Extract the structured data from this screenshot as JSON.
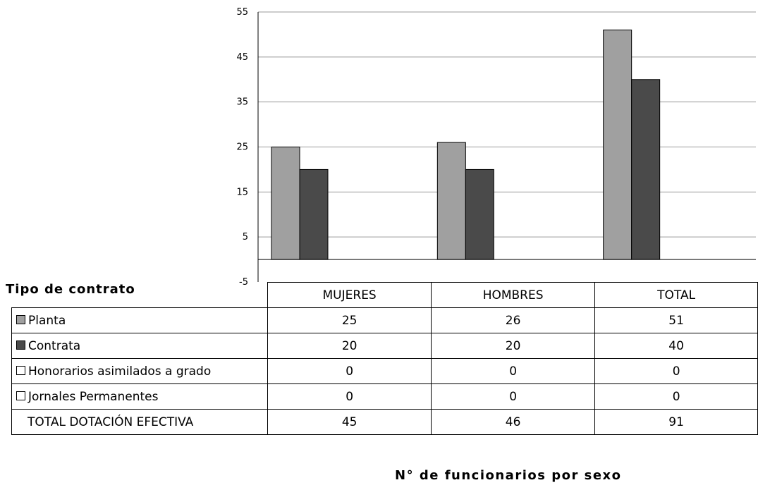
{
  "chart_data": {
    "type": "bar",
    "categories": [
      "MUJERES",
      "HOMBRES",
      "TOTAL"
    ],
    "series": [
      {
        "name": "Planta",
        "values": [
          25,
          26,
          51
        ],
        "color": "#a0a0a0"
      },
      {
        "name": "Contrata",
        "values": [
          20,
          20,
          40
        ],
        "color": "#4a4a4a"
      },
      {
        "name": "Honorarios asimilados a grado",
        "values": [
          0,
          0,
          0
        ],
        "color": "#ffffff"
      },
      {
        "name": "Jornales Permanentes",
        "values": [
          0,
          0,
          0
        ],
        "color": "#ffffff"
      }
    ],
    "total_row": {
      "label": "TOTAL DOTACIÓN EFECTIVA",
      "values": [
        45,
        46,
        91
      ]
    },
    "yticks": [
      "55",
      "45",
      "35",
      "25",
      "15",
      "5",
      "-5"
    ],
    "ylim": [
      -5,
      55
    ],
    "grid": true,
    "legend": "data-table-left",
    "row_header": "Tipo de contrato",
    "xlabel": "N° de funcionarios por sexo"
  }
}
